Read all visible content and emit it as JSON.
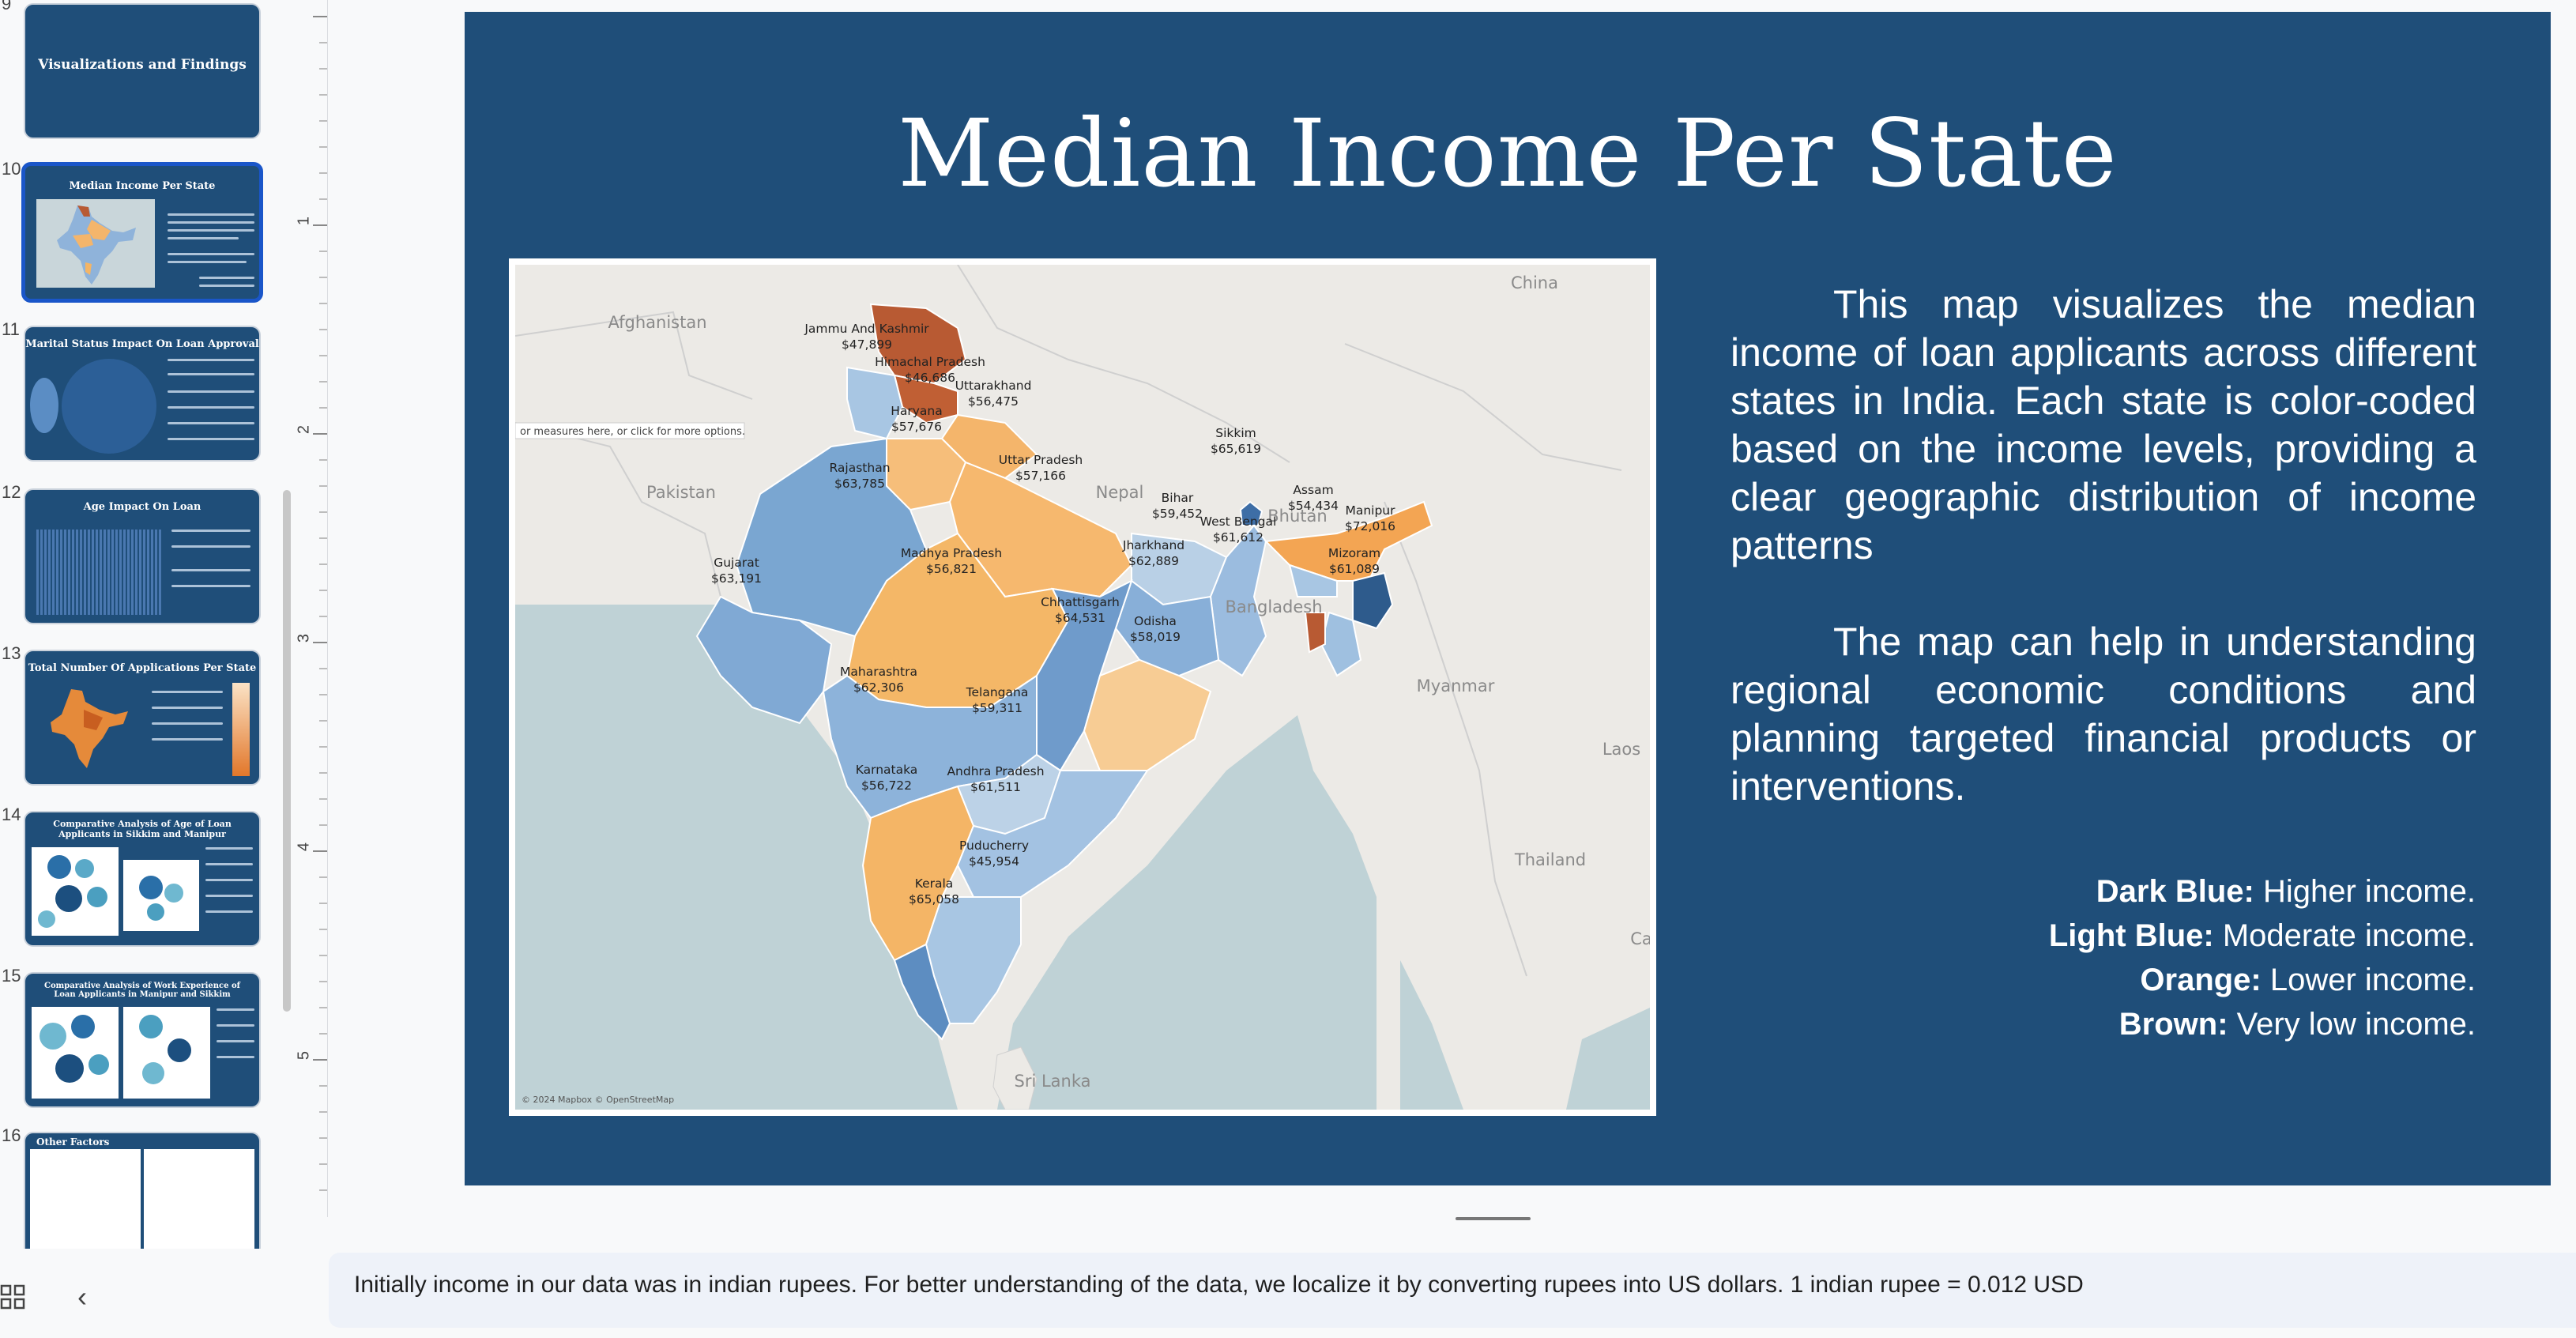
{
  "filmstrip": {
    "slides": [
      {
        "num": "9",
        "title": "Visualizations and Findings"
      },
      {
        "num": "10",
        "title": "Median Income Per State"
      },
      {
        "num": "11",
        "title": "Marital Status Impact On Loan Approval"
      },
      {
        "num": "12",
        "title": "Age Impact On Loan"
      },
      {
        "num": "13",
        "title": "Total Number Of Applications Per State"
      },
      {
        "num": "14",
        "title": "Comparative Analysis of Age of Loan Applicants in Sikkim and Manipur"
      },
      {
        "num": "15",
        "title": "Comparative Analysis of Work Experience of Loan Applicants in Manipur and Sikkim"
      },
      {
        "num": "16",
        "title": "Other Factors"
      }
    ]
  },
  "ruler": {
    "numbers": [
      "1",
      "2",
      "3",
      "4",
      "5"
    ]
  },
  "slide": {
    "title": "Median Income Per State",
    "description": [
      "This map visualizes the median income of loan applicants across different states in India. Each state is color-coded based on the income levels, providing a clear geographic distribution of income patterns",
      "The map can help in understanding regional economic conditions and planning targeted financial products or interventions."
    ],
    "legend": [
      {
        "term": "Dark Blue:",
        "desc": "Higher income."
      },
      {
        "term": "Light Blue:",
        "desc": "Moderate income."
      },
      {
        "term": "Orange:",
        "desc": "Lower income."
      },
      {
        "term": "Brown:",
        "desc": "Very low income."
      }
    ],
    "map": {
      "tooltip": "or measures here, or click for more options.",
      "attribution": "© 2024 Mapbox © OpenStreetMap",
      "countries": [
        "Afghanistan",
        "Pakistan",
        "China",
        "Nepal",
        "Bhutan",
        "Bangladesh",
        "Myanmar",
        "Laos",
        "Thailand",
        "Sri Lanka",
        "Ca"
      ],
      "states": [
        {
          "name": "Jammu And Kashmir",
          "value": "$47,899",
          "color": "#b85a33"
        },
        {
          "name": "Himachal Pradesh",
          "value": "$46,686",
          "color": "#c05f34"
        },
        {
          "name": "Uttarakhand",
          "value": "$56,475",
          "color": "#f4b56b"
        },
        {
          "name": "Haryana",
          "value": "$57,676",
          "color": "#f6be7a"
        },
        {
          "name": "Rajasthan",
          "value": "$63,785",
          "color": "#7aa6d1"
        },
        {
          "name": "Uttar Pradesh",
          "value": "$57,166",
          "color": "#f6b86e"
        },
        {
          "name": "Bihar",
          "value": "$59,452",
          "color": "#b9d0e6"
        },
        {
          "name": "Sikkim",
          "value": "$65,619",
          "color": "#3e6ea6"
        },
        {
          "name": "Assam",
          "value": "$54,434",
          "color": "#f3a553"
        },
        {
          "name": "Manipur",
          "value": "$72,016",
          "color": "#2e5b8c"
        },
        {
          "name": "Mizoram",
          "value": "$61,089",
          "color": "#9fc0e0"
        },
        {
          "name": "West Bengal",
          "value": "$61,612",
          "color": "#9bbcdf"
        },
        {
          "name": "Jharkhand",
          "value": "$62,889",
          "color": "#88afd8"
        },
        {
          "name": "Gujarat",
          "value": "$63,191",
          "color": "#80a9d4"
        },
        {
          "name": "Madhya Pradesh",
          "value": "$56,821",
          "color": "#f4b767"
        },
        {
          "name": "Chhattisgarh",
          "value": "$64,531",
          "color": "#6f9bcb"
        },
        {
          "name": "Odisha",
          "value": "$58,019",
          "color": "#f7cc94"
        },
        {
          "name": "Maharashtra",
          "value": "$62,306",
          "color": "#8db3da"
        },
        {
          "name": "Telangana",
          "value": "$59,311",
          "color": "#bcd2e7"
        },
        {
          "name": "Karnataka",
          "value": "$56,722",
          "color": "#f4b566"
        },
        {
          "name": "Andhra Pradesh",
          "value": "$61,511",
          "color": "#a3c2e2"
        },
        {
          "name": "Puducherry",
          "value": "$45,954",
          "color": "#a8c6e3"
        },
        {
          "name": "Kerala",
          "value": "$65,058",
          "color": "#5d8dc1"
        }
      ]
    }
  },
  "notes": {
    "text": "Initially income in our data was in indian rupees. For better understanding of the data, we localize it by converting rupees into US dollars. 1 indian rupee = 0.012 USD"
  },
  "controls": {
    "grid_icon": "grid-view-icon",
    "collapse_icon": "chevron-left-icon",
    "collapse_glyph": "‹"
  }
}
